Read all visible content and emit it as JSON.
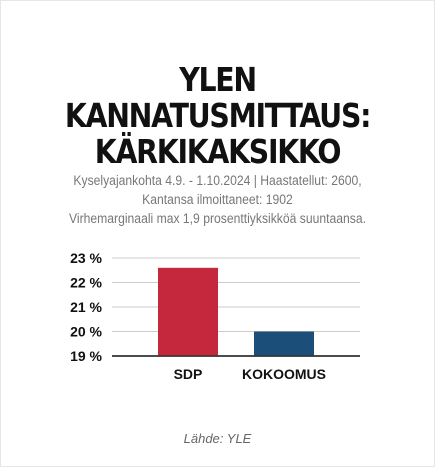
{
  "title_line1": "YLEN KANNATUSMITTAUS:",
  "title_line2": "KÄRKIKAKSIKKO",
  "subtitle_line1": "Kyselyajankohta 4.9. - 1.10.2024 | Haastatellut: 2600,",
  "subtitle_line2": "Kantansa ilmoittaneet: 1902",
  "subtitle_line3": "Virhemarginaali max 1,9 prosenttiyksikköä suuntaansa.",
  "source": "Lähde: YLE",
  "chart_data": {
    "type": "bar",
    "categories": [
      "SDP",
      "KOKOOMUS"
    ],
    "values": [
      22.6,
      20.0
    ],
    "colors": [
      "#c5283d",
      "#1b4f7a"
    ],
    "ylim": [
      19,
      23
    ],
    "yticks": [
      19,
      20,
      21,
      22,
      23
    ],
    "ytick_labels": [
      "19 %",
      "20 %",
      "21 %",
      "22 %",
      "23 %"
    ],
    "grid": true
  }
}
